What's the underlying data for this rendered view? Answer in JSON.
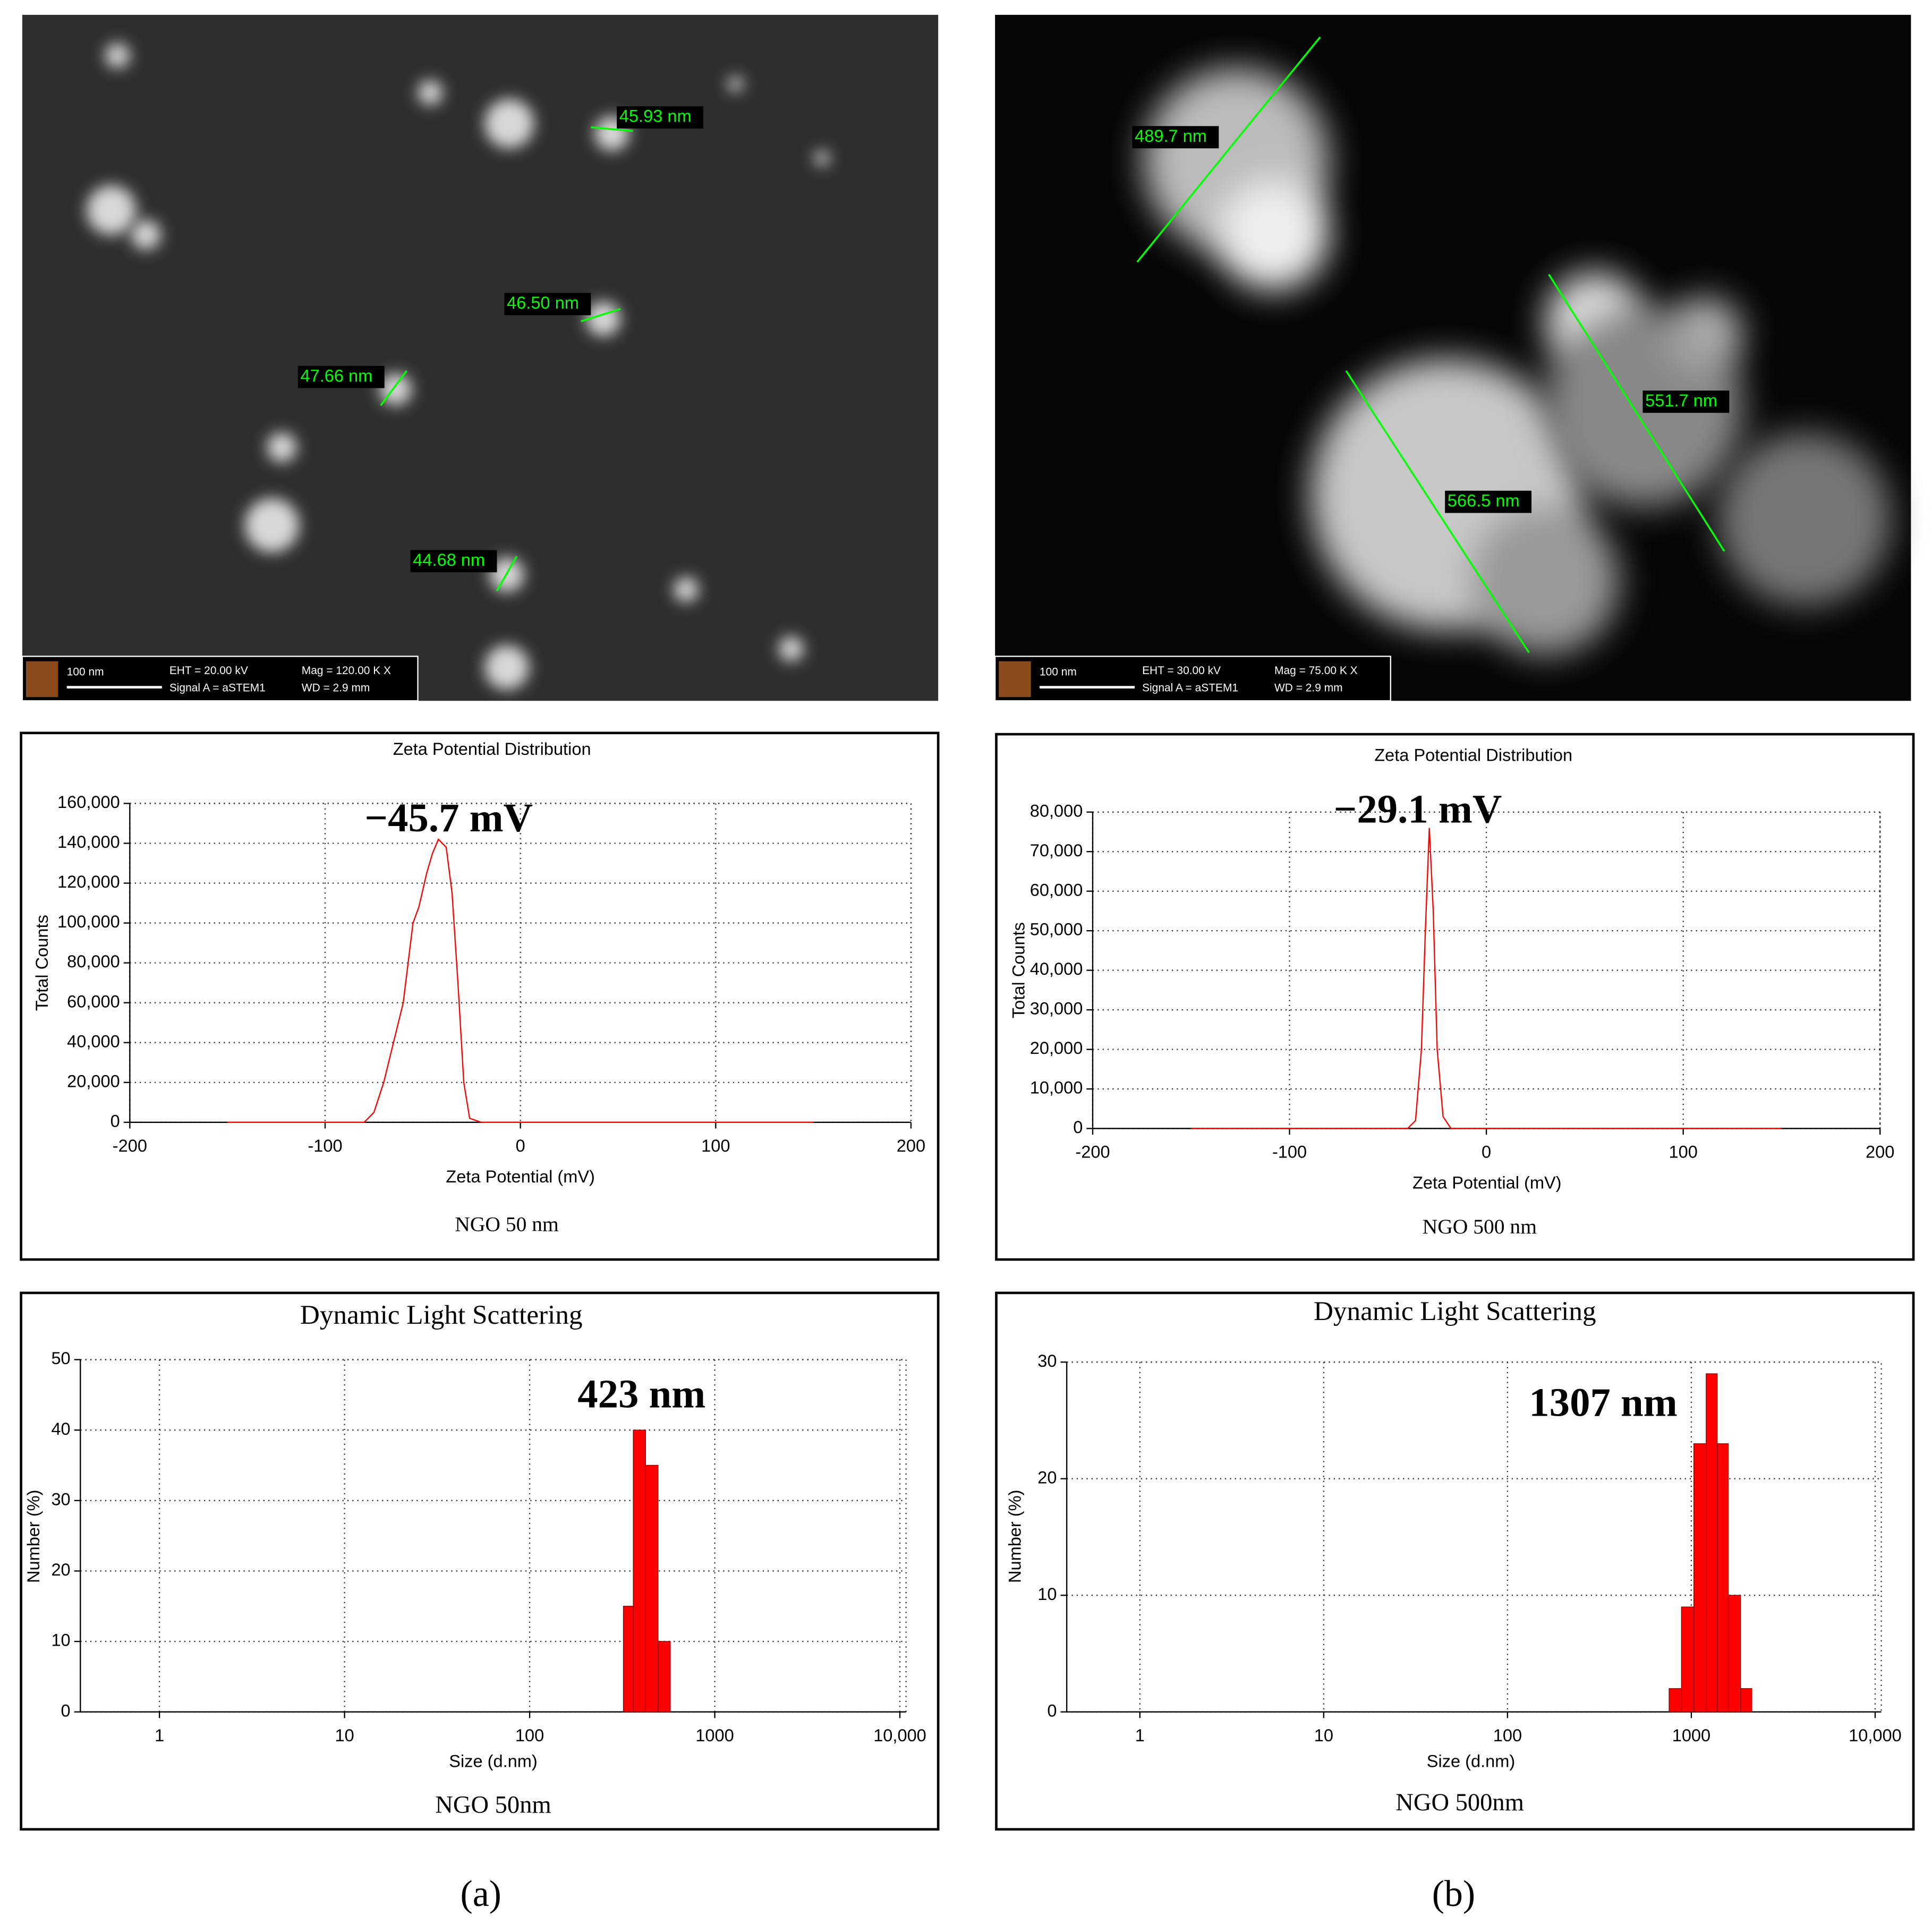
{
  "images": [
    {
      "labels": [
        "45.93 nm",
        "46.50 nm",
        "47.66 nm",
        "44.68 nm"
      ],
      "scale_bar": "100 nm",
      "eht": "EHT = 20.00 kV",
      "mag": "Mag =  120.00 K X",
      "signal": "Signal A = aSTEM1",
      "wd": "WD =  2.9 mm"
    },
    {
      "labels": [
        "489.7 nm",
        "551.7 nm",
        "566.5 nm"
      ],
      "scale_bar": "100 nm",
      "eht": "EHT = 30.00 kV",
      "mag": "Mag =  75.00 K X",
      "signal": "Signal A = aSTEM1",
      "wd": "WD =  2.9 mm"
    }
  ],
  "panel_labels": [
    "(a)",
    "(b)"
  ],
  "chart_data": [
    {
      "type": "line",
      "title": "Zeta Potential Distribution",
      "x_label": "Zeta Potential (mV)",
      "y_label": "Total Counts",
      "caption": "NGO 50 nm",
      "annotation": "−45.7 mV",
      "x": [
        -150,
        -80,
        -75,
        -70,
        -65,
        -60,
        -55,
        -52,
        -48,
        -45,
        -42,
        -38,
        -35,
        -32,
        -29,
        -26,
        -20,
        150
      ],
      "values": [
        0,
        0,
        5000,
        20000,
        40000,
        60000,
        100000,
        108000,
        125000,
        135000,
        142000,
        138000,
        115000,
        70000,
        20000,
        2000,
        0,
        0
      ],
      "color": "#ff0000",
      "xlim": [
        -200,
        200
      ],
      "xticks": [
        -200,
        -100,
        0,
        100,
        200
      ],
      "ylim": [
        0,
        160000
      ],
      "yticks": [
        0,
        {
          "value": 20000,
          "label": "20,000"
        },
        {
          "value": 40000,
          "label": "40,000"
        },
        {
          "value": 60000,
          "label": "60,000"
        },
        {
          "value": 80000,
          "label": "80,000"
        },
        {
          "value": 100000,
          "label": "100,000"
        },
        {
          "value": 120000,
          "label": "120,000"
        },
        {
          "value": 140000,
          "label": "140,000"
        },
        {
          "value": 160000,
          "label": "160,000"
        }
      ],
      "grid": true
    },
    {
      "type": "line",
      "title": "Zeta Potential Distribution",
      "x_label": "Zeta Potential (mV)",
      "y_label": "Total Counts",
      "caption": "NGO 500 nm",
      "annotation": "−29.1 mV",
      "x": [
        -150,
        -40,
        -36,
        -33,
        -31,
        -29,
        -27,
        -25,
        -22,
        -18,
        150
      ],
      "values": [
        0,
        0,
        2000,
        20000,
        50000,
        76000,
        55000,
        20000,
        3000,
        0,
        0
      ],
      "color": "#ff0000",
      "xlim": [
        -200,
        200
      ],
      "xticks": [
        -200,
        -100,
        0,
        100,
        200
      ],
      "ylim": [
        0,
        80000
      ],
      "yticks": [
        0,
        {
          "value": 10000,
          "label": "10,000"
        },
        {
          "value": 20000,
          "label": "20,000"
        },
        {
          "value": 30000,
          "label": "30,000"
        },
        {
          "value": 40000,
          "label": "40,000"
        },
        {
          "value": 50000,
          "label": "50,000"
        },
        {
          "value": 60000,
          "label": "60,000"
        },
        {
          "value": 70000,
          "label": "70,000"
        },
        {
          "value": 80000,
          "label": "80,000"
        }
      ],
      "grid": true
    },
    {
      "type": "histogram",
      "title": "Dynamic Light Scattering",
      "x_label": "Size (d.nm)",
      "y_label": "Number (%)",
      "caption": "NGO 50nm",
      "annotation": "423 nm",
      "bins": [
        321,
        363,
        423,
        494,
        575
      ],
      "values": [
        15,
        40,
        35,
        10
      ],
      "color": "#ff0000",
      "xscale": "log",
      "xlim": [
        0.374,
        10800
      ],
      "xticks": [
        1,
        10,
        100,
        1000,
        {
          "value": 10000,
          "label": "10,000"
        }
      ],
      "ylim": [
        0,
        50
      ],
      "yticks": [
        0,
        10,
        20,
        30,
        40,
        50
      ],
      "grid": true
    },
    {
      "type": "histogram",
      "title": "Dynamic Light Scattering",
      "x_label": "Size (d.nm)",
      "y_label": "Number (%)",
      "caption": "NGO 500nm",
      "annotation": "1307 nm",
      "bins": [
        757,
        884,
        1032,
        1204,
        1383,
        1589,
        1854,
        2133
      ],
      "values": [
        2,
        9,
        23,
        29,
        23,
        10,
        2
      ],
      "color": "#ff0000",
      "xscale": "log",
      "xlim": [
        0.4,
        10800
      ],
      "xticks": [
        1,
        10,
        100,
        1000,
        {
          "value": 10000,
          "label": "10,000"
        }
      ],
      "ylim": [
        0,
        30
      ],
      "yticks": [
        0,
        10,
        20,
        30
      ],
      "grid": true
    }
  ]
}
